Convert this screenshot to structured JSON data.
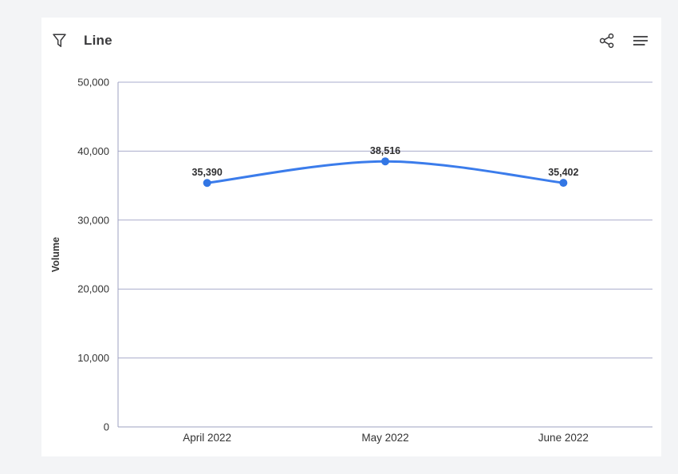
{
  "page": {
    "background_color": "#f3f4f6",
    "card_color": "#ffffff"
  },
  "header": {
    "title": "Line",
    "filter_icon": "filter-funnel-icon",
    "share_icon": "share-icon",
    "menu_icon": "hamburger-menu-icon"
  },
  "colors": {
    "line": "#3b7ceb",
    "point": "#3276e4",
    "grid": "#a9accc",
    "axis": "#9ea1c0",
    "tick_text": "#333333",
    "data_label_text": "#2f2f31",
    "title_text": "#3a3a3c"
  },
  "chart_data": {
    "type": "line",
    "title": "Line",
    "categories": [
      "April 2022",
      "May 2022",
      "June 2022"
    ],
    "series": [
      {
        "name": "Volume",
        "values": [
          35390,
          38516,
          35402
        ],
        "labels": [
          "35,390",
          "38,516",
          "35,402"
        ],
        "color": "#3b7ceb"
      }
    ],
    "xlabel": "",
    "ylabel": "Volume",
    "ylim": [
      0,
      50000
    ],
    "yticks": [
      0,
      10000,
      20000,
      30000,
      40000,
      50000
    ],
    "ytick_labels": [
      "0",
      "10,000",
      "20,000",
      "30,000",
      "40,000",
      "50,000"
    ],
    "grid": true,
    "legend_position": "none",
    "data_labels_visible": true,
    "curve": "smooth"
  }
}
